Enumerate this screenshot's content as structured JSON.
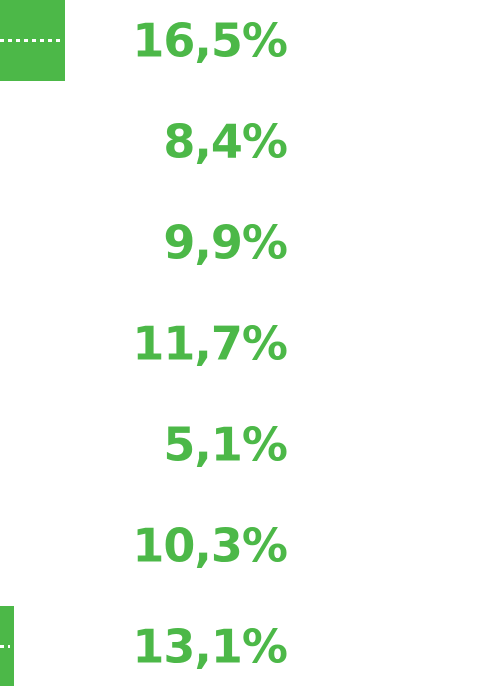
{
  "chart_data": {
    "type": "bar",
    "orientation": "horizontal",
    "values": [
      16.5,
      8.4,
      9.9,
      11.7,
      5.1,
      10.3,
      13.1
    ],
    "labels": [
      "16,5%",
      "8,4%",
      "9,9%",
      "11,7%",
      "5,1%",
      "10,3%",
      "13,1%"
    ],
    "highlighted": [
      true,
      false,
      false,
      true,
      false,
      false,
      true
    ],
    "highlight_color": "#4cb848",
    "label_color": "#4cb848"
  }
}
